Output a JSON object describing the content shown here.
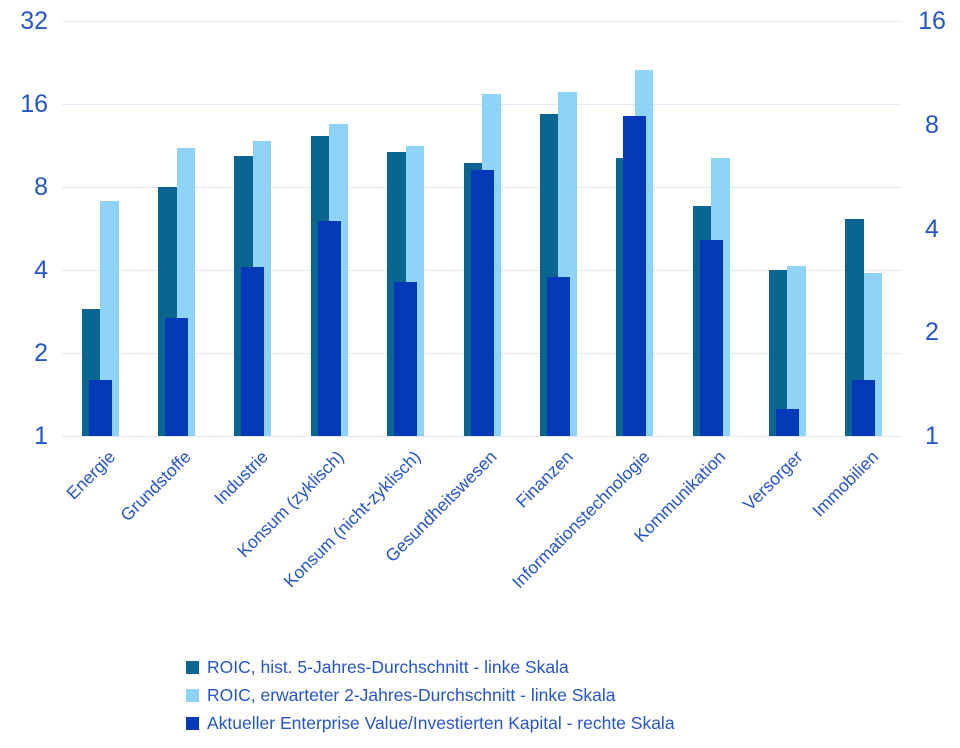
{
  "chart_data": {
    "type": "bar",
    "scale": "log2",
    "title": "",
    "grid": true,
    "legend_position": "bottom",
    "categories": [
      "Energie",
      "Grundstoffe",
      "Industrie",
      "Konsum (zyklisch)",
      "Konsum (nicht-zyklisch)",
      "Gesundheitswesen",
      "Finanzen",
      "Informationstechnologie",
      "Kommunikation",
      "Versorger",
      "Immobilien"
    ],
    "series": [
      {
        "name": "ROIC, hist. 5-Jahres-Durchschnitt - linke Skala",
        "axis": "left",
        "color": "#0a6591",
        "values": [
          2.9,
          8.0,
          10.4,
          12.2,
          10.7,
          9.8,
          14.7,
          10.2,
          6.8,
          4.0,
          6.1
        ]
      },
      {
        "name": "ROIC, erwarteter 2-Jahres-Durchschnitt - linke Skala",
        "axis": "left",
        "color": "#8fd3f8",
        "values": [
          7.1,
          11.1,
          11.7,
          13.5,
          11.3,
          17.4,
          17.7,
          21.3,
          10.2,
          4.15,
          3.9
        ]
      },
      {
        "name": "Aktueller Enterprise Value/Investierten Kapital - rechte Skala",
        "axis": "right",
        "color": "#0439b8",
        "values": [
          1.45,
          2.2,
          3.1,
          4.2,
          2.8,
          5.9,
          2.9,
          8.5,
          3.7,
          1.2,
          1.45
        ]
      }
    ],
    "y_axis_left": {
      "ticks": [
        32,
        16,
        8,
        4,
        2,
        1
      ],
      "min": 1,
      "max": 32
    },
    "y_axis_right": {
      "ticks": [
        16,
        8,
        4,
        2,
        1
      ],
      "min": 1,
      "max": 16
    }
  },
  "colors": {
    "axis_text": "#2456cb",
    "gridline": "#e2ebf8",
    "background": "#ffffff"
  }
}
